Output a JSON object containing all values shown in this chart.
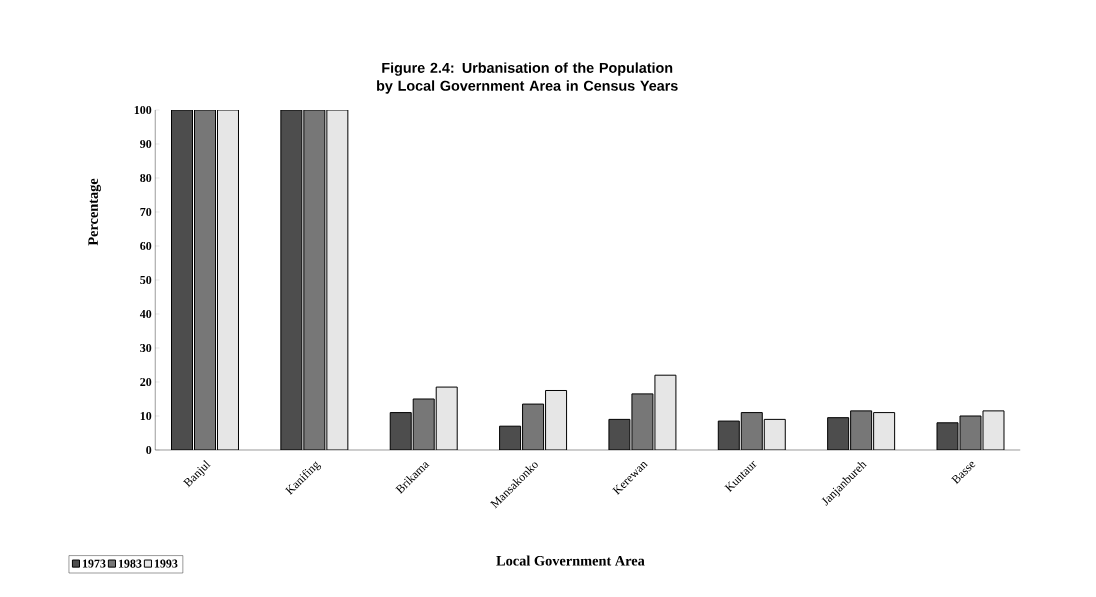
{
  "chart_data": {
    "type": "bar",
    "title": "Figure 2.4: Urbanisation of the Population by Local Government Area in Census Years",
    "xlabel": "Local Government Area",
    "ylabel": "Percentage",
    "categories": [
      "Banjul",
      "Kanifing",
      "Brikama",
      "Mansakonko",
      "Kerewan",
      "Kuntaur",
      "Janjanbureh",
      "Basse"
    ],
    "series": [
      {
        "name": "1973",
        "color": "#4d4d4d",
        "values": [
          100,
          100,
          11,
          7,
          9,
          8.5,
          9.5,
          8
        ]
      },
      {
        "name": "1983",
        "color": "#777777",
        "values": [
          100,
          100,
          15,
          13.5,
          16.5,
          11,
          11.5,
          10
        ]
      },
      {
        "name": "1993",
        "color": "#e6e6e6",
        "values": [
          100,
          100,
          18.5,
          17.5,
          22,
          9,
          11,
          11.5
        ]
      }
    ],
    "ylim": [
      0,
      100
    ],
    "yticks": [
      0,
      10,
      20,
      30,
      40,
      50,
      60,
      70,
      80,
      90,
      100
    ],
    "grid": false,
    "legend": "bottom left"
  }
}
